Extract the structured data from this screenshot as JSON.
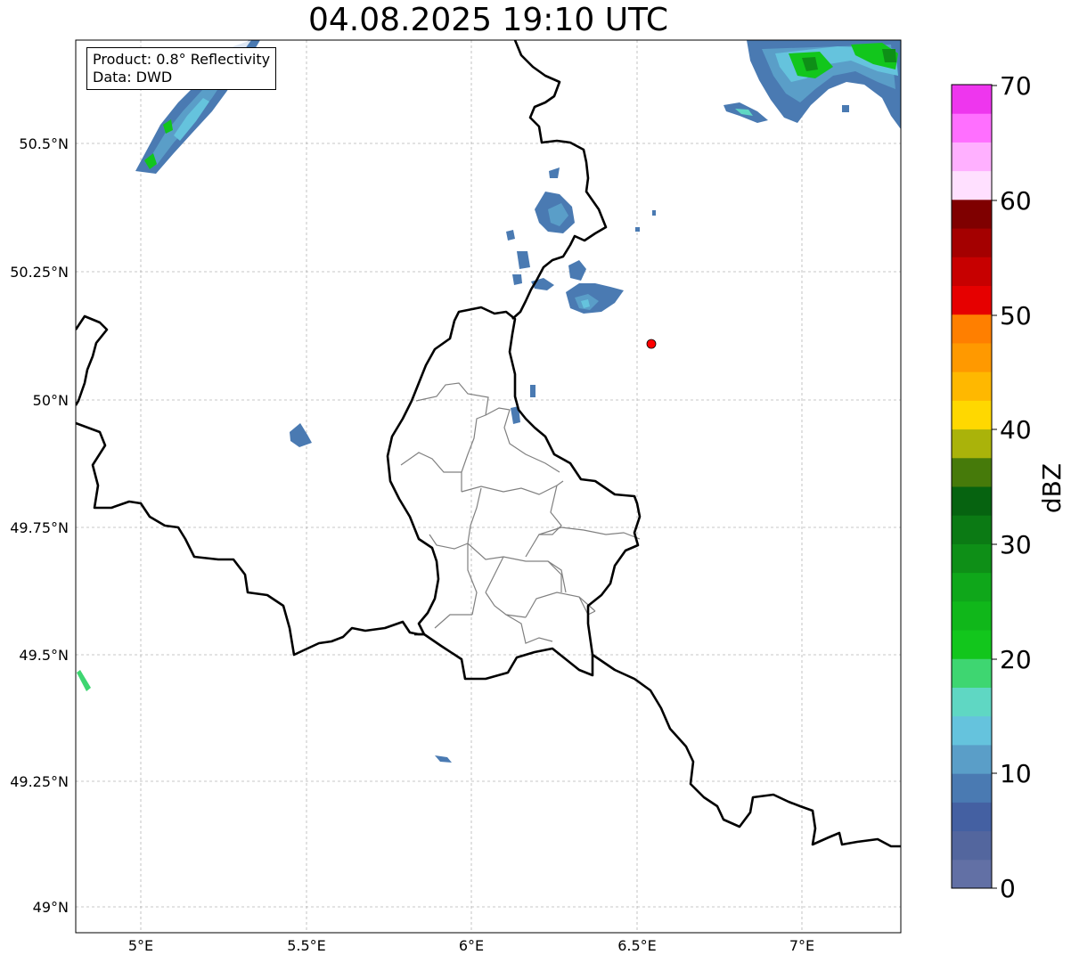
{
  "title": "04.08.2025 19:10 UTC",
  "info": {
    "product": "Product: 0.8° Reflectivity",
    "source": "Data: DWD"
  },
  "axes": {
    "lon_ticks": [
      "5°E",
      "5.5°E",
      "6°E",
      "6.5°E",
      "7°E"
    ],
    "lat_ticks": [
      "50.5°N",
      "50.25°N",
      "50°N",
      "49.75°N",
      "49.5°N",
      "49.25°N",
      "49°N"
    ]
  },
  "colorbar": {
    "label": "dBZ",
    "ticks": [
      "70",
      "60",
      "50",
      "40",
      "30",
      "20",
      "10",
      "0"
    ],
    "colors": [
      "#6270a5",
      "#53669e",
      "#4460a2",
      "#4a7ab2",
      "#5a9ec8",
      "#65c3dd",
      "#5fd7c3",
      "#3ed671",
      "#12c61c",
      "#10b71a",
      "#0fa71a",
      "#0e8f17",
      "#0b7a14",
      "#066310",
      "#467a0a",
      "#aab30a",
      "#ffd800",
      "#ffb800",
      "#ff9900",
      "#ff7f00",
      "#e60000",
      "#c70000",
      "#a40000",
      "#7f0000",
      "#ffe0ff",
      "#ffb0ff",
      "#ff6fff",
      "#ee36ee"
    ]
  },
  "marker": {
    "color": "#ff0000",
    "lon": 6.55,
    "lat": 50.11
  }
}
